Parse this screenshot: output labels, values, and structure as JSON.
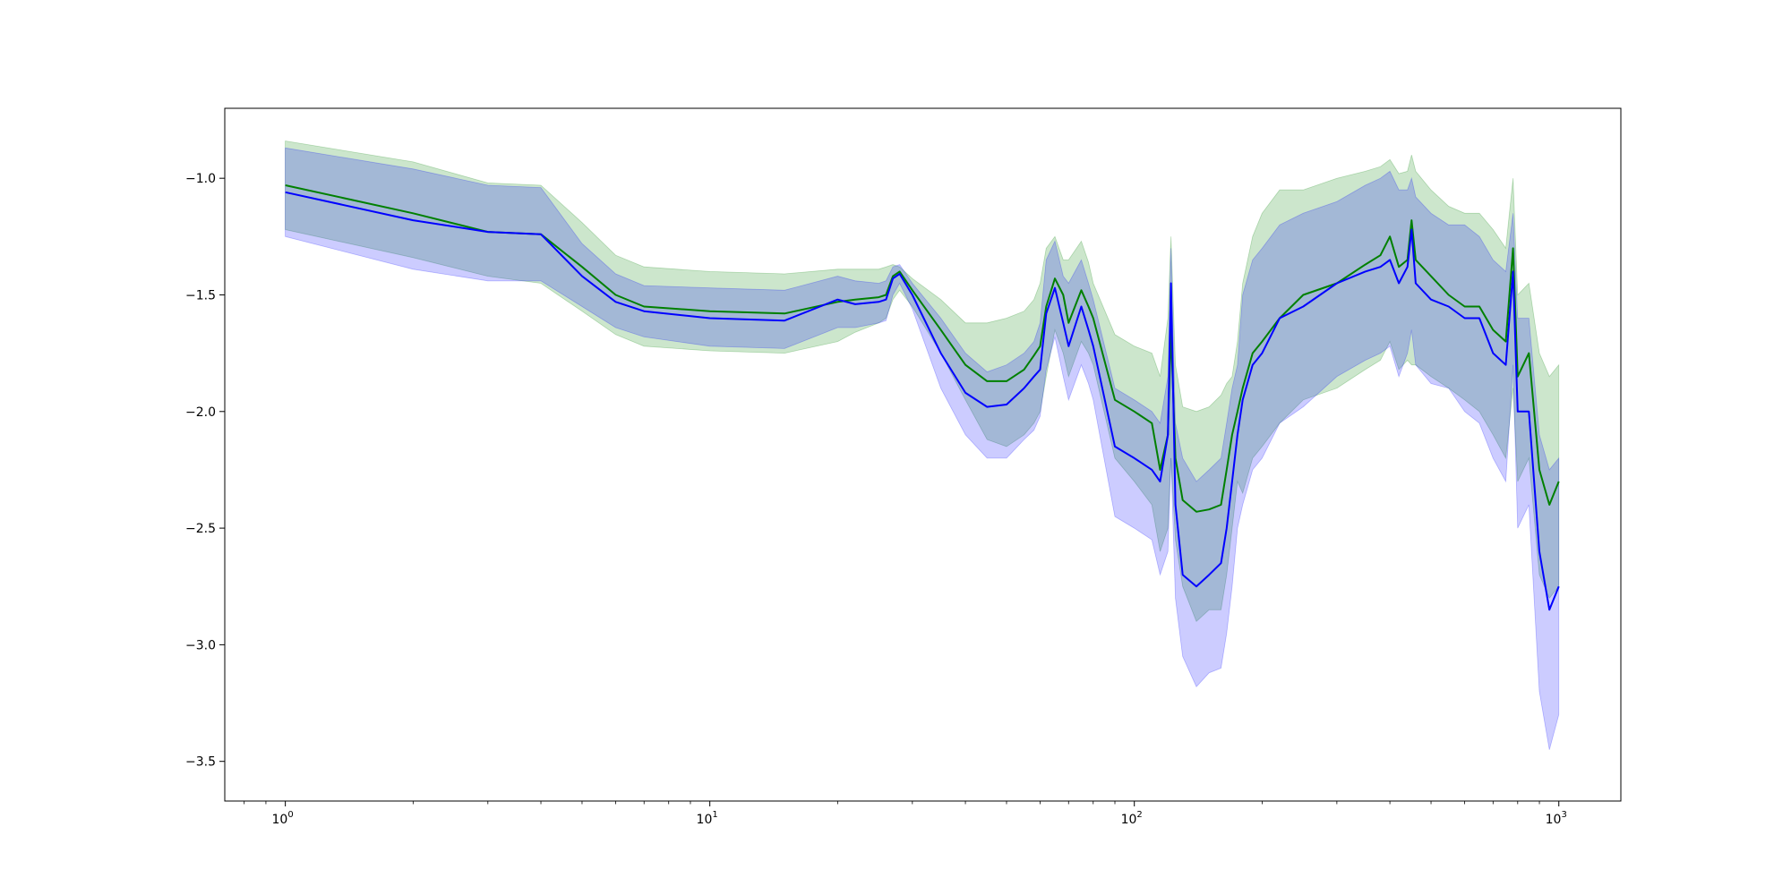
{
  "chart_data": {
    "type": "line",
    "title": "",
    "xlabel": "",
    "ylabel": "",
    "x_scale": "log",
    "xlim": [
      0.72,
      1400
    ],
    "ylim": [
      -3.67,
      -0.7
    ],
    "grid": false,
    "legend": "none",
    "x_ticks": [
      {
        "value": 1,
        "base": "10",
        "exp": "0"
      },
      {
        "value": 10,
        "base": "10",
        "exp": "1"
      },
      {
        "value": 100,
        "base": "10",
        "exp": "2"
      },
      {
        "value": 1000,
        "base": "10",
        "exp": "3"
      }
    ],
    "y_ticks": [
      {
        "value": -1.0,
        "label": "−1.0"
      },
      {
        "value": -1.5,
        "label": "−1.5"
      },
      {
        "value": -2.0,
        "label": "−2.0"
      },
      {
        "value": -2.5,
        "label": "−2.5"
      },
      {
        "value": -3.0,
        "label": "−3.0"
      },
      {
        "value": -3.5,
        "label": "−3.5"
      }
    ],
    "series": [
      {
        "color": "#008000",
        "band_color": "#008000",
        "band_opacity": 0.2,
        "x": [
          1,
          2,
          3,
          4,
          5,
          6,
          7,
          10,
          15,
          20,
          22,
          25,
          26,
          27,
          28,
          30,
          35,
          40,
          45,
          50,
          55,
          58,
          60,
          62,
          65,
          68,
          70,
          75,
          78,
          80,
          90,
          100,
          110,
          115,
          120,
          122,
          125,
          130,
          140,
          150,
          160,
          165,
          170,
          175,
          180,
          190,
          200,
          220,
          250,
          300,
          350,
          380,
          400,
          420,
          440,
          450,
          460,
          500,
          550,
          600,
          650,
          700,
          750,
          780,
          800,
          850,
          900,
          950,
          1000
        ],
        "y": [
          -1.03,
          -1.15,
          -1.23,
          -1.24,
          -1.38,
          -1.5,
          -1.55,
          -1.57,
          -1.58,
          -1.53,
          -1.52,
          -1.51,
          -1.5,
          -1.42,
          -1.4,
          -1.48,
          -1.65,
          -1.8,
          -1.87,
          -1.87,
          -1.82,
          -1.76,
          -1.72,
          -1.55,
          -1.43,
          -1.5,
          -1.62,
          -1.48,
          -1.55,
          -1.6,
          -1.95,
          -2.0,
          -2.05,
          -2.25,
          -2.1,
          -1.65,
          -2.2,
          -2.38,
          -2.43,
          -2.42,
          -2.4,
          -2.25,
          -2.1,
          -2.0,
          -1.9,
          -1.75,
          -1.7,
          -1.6,
          -1.5,
          -1.45,
          -1.37,
          -1.33,
          -1.25,
          -1.38,
          -1.35,
          -1.18,
          -1.35,
          -1.42,
          -1.5,
          -1.55,
          -1.55,
          -1.65,
          -1.7,
          -1.3,
          -1.85,
          -1.75,
          -2.25,
          -2.4,
          -2.3
        ],
        "upper": [
          -0.84,
          -0.93,
          -1.02,
          -1.03,
          -1.19,
          -1.33,
          -1.38,
          -1.4,
          -1.41,
          -1.39,
          -1.39,
          -1.39,
          -1.38,
          -1.37,
          -1.38,
          -1.43,
          -1.52,
          -1.62,
          -1.62,
          -1.6,
          -1.57,
          -1.52,
          -1.45,
          -1.3,
          -1.25,
          -1.35,
          -1.35,
          -1.27,
          -1.36,
          -1.45,
          -1.67,
          -1.72,
          -1.75,
          -1.85,
          -1.6,
          -1.25,
          -1.8,
          -1.98,
          -2.0,
          -1.98,
          -1.93,
          -1.88,
          -1.85,
          -1.7,
          -1.45,
          -1.25,
          -1.15,
          -1.05,
          -1.05,
          -1.0,
          -0.97,
          -0.95,
          -0.92,
          -0.98,
          -0.97,
          -0.9,
          -0.97,
          -1.05,
          -1.12,
          -1.15,
          -1.15,
          -1.22,
          -1.3,
          -1.0,
          -1.5,
          -1.45,
          -1.75,
          -1.85,
          -1.8
        ],
        "lower": [
          -1.22,
          -1.34,
          -1.42,
          -1.45,
          -1.57,
          -1.67,
          -1.72,
          -1.74,
          -1.75,
          -1.7,
          -1.66,
          -1.62,
          -1.6,
          -1.52,
          -1.48,
          -1.55,
          -1.75,
          -1.95,
          -2.12,
          -2.15,
          -2.1,
          -2.05,
          -2.0,
          -1.85,
          -1.65,
          -1.75,
          -1.85,
          -1.7,
          -1.75,
          -1.8,
          -2.2,
          -2.3,
          -2.4,
          -2.6,
          -2.5,
          -2.2,
          -2.55,
          -2.75,
          -2.9,
          -2.85,
          -2.85,
          -2.7,
          -2.5,
          -2.3,
          -2.35,
          -2.2,
          -2.15,
          -2.05,
          -1.95,
          -1.9,
          -1.82,
          -1.78,
          -1.7,
          -1.82,
          -1.78,
          -1.8,
          -1.8,
          -1.85,
          -1.9,
          -1.95,
          -2.0,
          -2.1,
          -2.2,
          -1.9,
          -2.3,
          -2.2,
          -2.7,
          -2.8,
          -2.75
        ]
      },
      {
        "color": "#0000ff",
        "band_color": "#0000ff",
        "band_opacity": 0.2,
        "x": [
          1,
          2,
          3,
          4,
          5,
          6,
          7,
          10,
          15,
          20,
          22,
          25,
          26,
          27,
          28,
          30,
          35,
          40,
          45,
          50,
          55,
          58,
          60,
          62,
          65,
          68,
          70,
          75,
          78,
          80,
          90,
          100,
          110,
          115,
          120,
          122,
          125,
          130,
          140,
          150,
          160,
          165,
          170,
          175,
          180,
          190,
          200,
          220,
          250,
          300,
          350,
          380,
          400,
          420,
          440,
          450,
          460,
          500,
          550,
          600,
          650,
          700,
          750,
          780,
          800,
          850,
          900,
          950,
          1000
        ],
        "y": [
          -1.06,
          -1.18,
          -1.23,
          -1.24,
          -1.42,
          -1.53,
          -1.57,
          -1.6,
          -1.61,
          -1.52,
          -1.54,
          -1.53,
          -1.52,
          -1.43,
          -1.41,
          -1.5,
          -1.75,
          -1.92,
          -1.98,
          -1.97,
          -1.9,
          -1.85,
          -1.82,
          -1.58,
          -1.47,
          -1.62,
          -1.72,
          -1.55,
          -1.65,
          -1.72,
          -2.15,
          -2.2,
          -2.25,
          -2.3,
          -2.1,
          -1.45,
          -2.4,
          -2.7,
          -2.75,
          -2.7,
          -2.65,
          -2.5,
          -2.3,
          -2.1,
          -1.95,
          -1.8,
          -1.75,
          -1.6,
          -1.55,
          -1.45,
          -1.4,
          -1.38,
          -1.35,
          -1.45,
          -1.38,
          -1.22,
          -1.45,
          -1.52,
          -1.55,
          -1.6,
          -1.6,
          -1.75,
          -1.8,
          -1.4,
          -2.0,
          -2.0,
          -2.6,
          -2.85,
          -2.75
        ],
        "upper": [
          -0.87,
          -0.96,
          -1.03,
          -1.04,
          -1.28,
          -1.41,
          -1.46,
          -1.47,
          -1.48,
          -1.42,
          -1.44,
          -1.45,
          -1.44,
          -1.38,
          -1.37,
          -1.45,
          -1.6,
          -1.75,
          -1.83,
          -1.8,
          -1.75,
          -1.7,
          -1.62,
          -1.35,
          -1.27,
          -1.42,
          -1.45,
          -1.35,
          -1.45,
          -1.52,
          -1.9,
          -1.95,
          -2.0,
          -2.05,
          -1.85,
          -1.3,
          -2.05,
          -2.2,
          -2.3,
          -2.25,
          -2.2,
          -2.05,
          -1.9,
          -1.8,
          -1.5,
          -1.35,
          -1.3,
          -1.2,
          -1.15,
          -1.1,
          -1.03,
          -1.0,
          -0.97,
          -1.05,
          -1.05,
          -1.0,
          -1.08,
          -1.15,
          -1.2,
          -1.2,
          -1.25,
          -1.35,
          -1.4,
          -1.15,
          -1.6,
          -1.6,
          -2.1,
          -2.25,
          -2.2
        ],
        "lower": [
          -1.25,
          -1.39,
          -1.44,
          -1.44,
          -1.55,
          -1.64,
          -1.68,
          -1.72,
          -1.73,
          -1.64,
          -1.64,
          -1.62,
          -1.61,
          -1.5,
          -1.45,
          -1.56,
          -1.9,
          -2.1,
          -2.2,
          -2.2,
          -2.12,
          -2.08,
          -2.02,
          -1.82,
          -1.68,
          -1.85,
          -1.95,
          -1.8,
          -1.88,
          -1.95,
          -2.45,
          -2.5,
          -2.55,
          -2.7,
          -2.6,
          -2.2,
          -2.8,
          -3.05,
          -3.18,
          -3.12,
          -3.1,
          -2.95,
          -2.75,
          -2.5,
          -2.4,
          -2.25,
          -2.2,
          -2.05,
          -1.98,
          -1.85,
          -1.78,
          -1.75,
          -1.72,
          -1.85,
          -1.75,
          -1.65,
          -1.8,
          -1.88,
          -1.9,
          -2.0,
          -2.05,
          -2.2,
          -2.3,
          -1.8,
          -2.5,
          -2.4,
          -3.2,
          -3.45,
          -3.3
        ]
      }
    ]
  }
}
